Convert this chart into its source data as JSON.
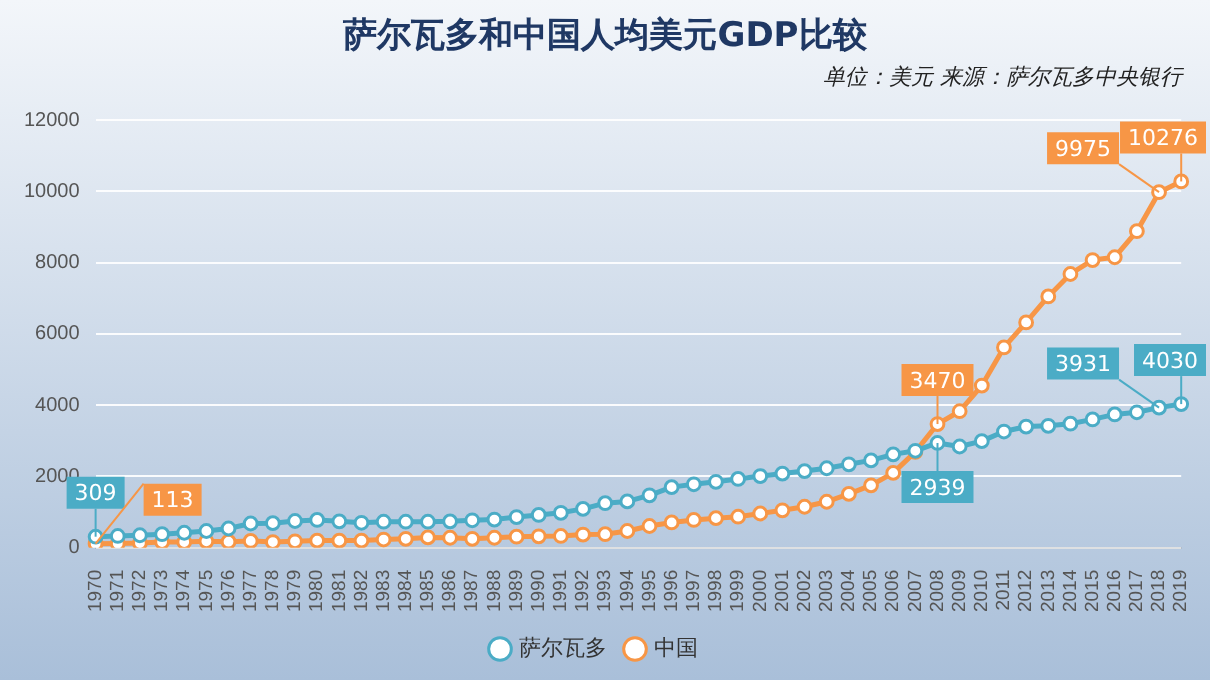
{
  "chart_data": {
    "type": "line",
    "title": "萨尔瓦多和中国人均美元GDP比较",
    "subtitle": "单位：美元 来源：萨尔瓦多中央银行",
    "categories": [
      "1970",
      "1971",
      "1972",
      "1973",
      "1974",
      "1975",
      "1976",
      "1977",
      "1978",
      "1979",
      "1980",
      "1981",
      "1982",
      "1983",
      "1984",
      "1985",
      "1986",
      "1987",
      "1988",
      "1989",
      "1990",
      "1991",
      "1992",
      "1993",
      "1994",
      "1995",
      "1996",
      "1997",
      "1998",
      "1999",
      "2000",
      "2001",
      "2002",
      "2003",
      "2004",
      "2005",
      "2006",
      "2007",
      "2008",
      "2009",
      "2010",
      "2011",
      "2012",
      "2013",
      "2014",
      "2015",
      "2016",
      "2017",
      "2018",
      "2019"
    ],
    "series": [
      {
        "name": "萨尔瓦多",
        "color": "#4bacc6",
        "values": [
          309,
          330,
          350,
          380,
          420,
          470,
          540,
          680,
          690,
          750,
          780,
          740,
          700,
          730,
          730,
          730,
          740,
          770,
          790,
          860,
          920,
          980,
          1090,
          1250,
          1300,
          1470,
          1700,
          1780,
          1850,
          1930,
          2010,
          2080,
          2150,
          2230,
          2340,
          2450,
          2620,
          2720,
          2939,
          2840,
          2990,
          3260,
          3400,
          3420,
          3480,
          3600,
          3740,
          3800,
          3931,
          4030
        ],
        "value_labels": [
          "309",
          null,
          null,
          null,
          null,
          null,
          null,
          null,
          null,
          null,
          null,
          null,
          null,
          null,
          null,
          null,
          null,
          null,
          null,
          null,
          null,
          null,
          null,
          null,
          null,
          null,
          null,
          null,
          null,
          null,
          null,
          null,
          null,
          null,
          null,
          null,
          null,
          null,
          "2939",
          null,
          null,
          null,
          null,
          null,
          null,
          null,
          null,
          null,
          "3931",
          "4030"
        ]
      },
      {
        "name": "中国",
        "color": "#f79646",
        "values": [
          113,
          120,
          130,
          160,
          160,
          180,
          170,
          190,
          160,
          180,
          200,
          200,
          200,
          230,
          250,
          290,
          280,
          250,
          280,
          310,
          320,
          330,
          370,
          380,
          470,
          610,
          710,
          780,
          830,
          870,
          960,
          1050,
          1150,
          1290,
          1510,
          1750,
          2100,
          2690,
          3470,
          3830,
          4550,
          5620,
          6320,
          7050,
          7680,
          8070,
          8150,
          8880,
          9975,
          10276
        ],
        "value_labels": [
          "113",
          null,
          null,
          null,
          null,
          null,
          null,
          null,
          null,
          null,
          null,
          null,
          null,
          null,
          null,
          null,
          null,
          null,
          null,
          null,
          null,
          null,
          null,
          null,
          null,
          null,
          null,
          null,
          null,
          null,
          null,
          null,
          null,
          null,
          null,
          null,
          null,
          null,
          "3470",
          null,
          null,
          null,
          null,
          null,
          null,
          null,
          null,
          null,
          "9975",
          "10276"
        ]
      }
    ],
    "ylim": [
      0,
      12000
    ],
    "yticks": [
      0,
      2000,
      4000,
      6000,
      8000,
      10000,
      12000
    ],
    "grid": "y",
    "legend": "bottom",
    "marker": "circle",
    "line_style": "solid"
  }
}
